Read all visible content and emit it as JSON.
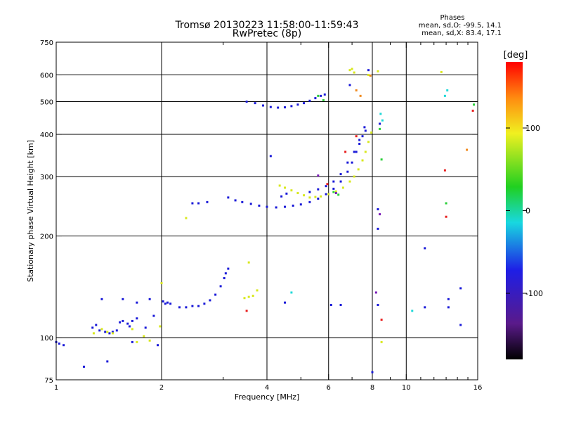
{
  "title_line1": "Tromsø 20130223 11:58:00-11:59:43",
  "title_line2": "RwPretec (8p)",
  "phases": {
    "heading": "Phases",
    "line_o": "mean, sd,O: -99.5, 14.1",
    "line_x": "mean, sd,X: 83.4, 17.1"
  },
  "colorbar": {
    "label": "[deg]",
    "ticks": [
      {
        "value": 100,
        "label": "100"
      },
      {
        "value": 0,
        "label": "0"
      },
      {
        "value": -100,
        "label": "-100"
      }
    ],
    "range": [
      -180,
      180
    ]
  },
  "chart_data": {
    "type": "scatter",
    "title": "Tromsø 20130223 11:58:00-11:59:43",
    "subtitle": "RwPretec (8p)",
    "xlabel": "Frequency [MHz]",
    "ylabel": "Stationary phase Virtual Height [km]",
    "xscale": "log",
    "yscale": "log",
    "xlim": [
      1,
      16
    ],
    "ylim": [
      75,
      750
    ],
    "grid": true,
    "xticks": [
      1,
      2,
      4,
      6,
      8,
      10,
      16
    ],
    "yticks": [
      75,
      100,
      200,
      300,
      400,
      500,
      600,
      750
    ],
    "vgrid": [
      2,
      4,
      6,
      8,
      10
    ],
    "hgrid": [
      100,
      200,
      300,
      400,
      500,
      600
    ],
    "color_scale": "phase [deg], -180 to 180",
    "series": [
      {
        "color": "#1a1ad8",
        "points": [
          [
            1.0,
            97
          ],
          [
            1.02,
            96
          ],
          [
            1.05,
            95
          ],
          [
            1.27,
            107
          ],
          [
            1.3,
            109
          ],
          [
            1.33,
            105
          ],
          [
            1.38,
            104
          ],
          [
            1.42,
            103
          ],
          [
            1.45,
            104
          ],
          [
            1.49,
            105
          ],
          [
            1.52,
            111
          ],
          [
            1.55,
            112
          ],
          [
            1.6,
            110
          ],
          [
            1.65,
            112
          ],
          [
            1.7,
            114
          ],
          [
            2.02,
            128
          ],
          [
            2.05,
            126
          ],
          [
            2.08,
            127
          ],
          [
            2.12,
            126
          ],
          [
            2.25,
            123
          ],
          [
            2.35,
            123
          ],
          [
            2.45,
            124
          ],
          [
            2.55,
            124
          ],
          [
            2.65,
            126
          ],
          [
            2.75,
            129
          ],
          [
            2.85,
            134
          ],
          [
            2.95,
            142
          ],
          [
            3.02,
            150
          ],
          [
            3.05,
            155
          ],
          [
            3.1,
            160
          ],
          [
            2.45,
            250
          ],
          [
            2.55,
            250
          ],
          [
            2.7,
            252
          ],
          [
            3.1,
            260
          ],
          [
            3.25,
            255
          ],
          [
            3.4,
            252
          ],
          [
            3.6,
            249
          ],
          [
            3.8,
            246
          ],
          [
            4.0,
            244
          ],
          [
            4.25,
            243
          ],
          [
            4.5,
            244
          ],
          [
            4.75,
            246
          ],
          [
            5.0,
            248
          ],
          [
            5.3,
            252
          ],
          [
            5.6,
            258
          ],
          [
            5.9,
            266
          ],
          [
            6.2,
            276
          ],
          [
            6.5,
            290
          ],
          [
            6.8,
            310
          ],
          [
            7.0,
            330
          ],
          [
            7.2,
            355
          ],
          [
            7.35,
            375
          ],
          [
            7.5,
            395
          ],
          [
            7.65,
            410
          ],
          [
            5.3,
            270
          ],
          [
            5.6,
            275
          ],
          [
            5.9,
            281
          ],
          [
            6.2,
            290
          ],
          [
            6.5,
            305
          ],
          [
            6.8,
            330
          ],
          [
            7.1,
            355
          ],
          [
            7.35,
            385
          ],
          [
            7.6,
            420
          ],
          [
            3.5,
            500
          ],
          [
            3.7,
            495
          ],
          [
            3.9,
            487
          ],
          [
            4.1,
            482
          ],
          [
            4.3,
            480
          ],
          [
            4.5,
            481
          ],
          [
            4.7,
            485
          ],
          [
            4.9,
            490
          ],
          [
            5.1,
            495
          ],
          [
            5.3,
            503
          ],
          [
            5.5,
            512
          ],
          [
            5.7,
            520
          ],
          [
            5.85,
            525
          ],
          [
            6.9,
            560
          ],
          [
            7.8,
            620
          ],
          [
            8.3,
            240
          ],
          [
            8.3,
            210
          ],
          [
            8.4,
            430
          ],
          [
            1.62,
            108
          ],
          [
            1.8,
            107
          ],
          [
            1.9,
            116
          ],
          [
            1.35,
            130
          ],
          [
            1.55,
            130
          ],
          [
            1.7,
            127
          ],
          [
            1.85,
            130
          ],
          [
            4.1,
            345
          ],
          [
            4.4,
            262
          ],
          [
            4.55,
            267
          ],
          [
            1.95,
            95
          ],
          [
            1.65,
            97
          ],
          [
            1.4,
            85
          ],
          [
            1.2,
            82
          ],
          [
            4.5,
            127
          ],
          [
            6.1,
            125
          ],
          [
            6.5,
            125
          ],
          [
            8.3,
            125
          ],
          [
            13.2,
            130
          ],
          [
            14.3,
            140
          ],
          [
            13.2,
            123
          ],
          [
            11.3,
            184
          ],
          [
            11.3,
            123
          ],
          [
            14.3,
            109
          ],
          [
            8.0,
            79
          ]
        ]
      },
      {
        "color": "#d8e81e",
        "points": [
          [
            1.28,
            103
          ],
          [
            1.35,
            106
          ],
          [
            1.4,
            104
          ],
          [
            1.45,
            103
          ],
          [
            1.65,
            106
          ],
          [
            1.7,
            97
          ],
          [
            1.78,
            101
          ],
          [
            1.85,
            98
          ],
          [
            1.98,
            108
          ],
          [
            2.0,
            145
          ],
          [
            4.35,
            282
          ],
          [
            4.5,
            278
          ],
          [
            4.7,
            273
          ],
          [
            4.9,
            268
          ],
          [
            5.1,
            264
          ],
          [
            5.3,
            260
          ],
          [
            5.5,
            261
          ],
          [
            5.7,
            262
          ],
          [
            6.0,
            266
          ],
          [
            6.3,
            271
          ],
          [
            6.6,
            278
          ],
          [
            6.9,
            290
          ],
          [
            7.1,
            300
          ],
          [
            7.3,
            315
          ],
          [
            7.5,
            335
          ],
          [
            7.65,
            355
          ],
          [
            7.8,
            380
          ],
          [
            7.95,
            405
          ],
          [
            3.45,
            131
          ],
          [
            3.55,
            132
          ],
          [
            3.65,
            133
          ],
          [
            3.75,
            138
          ],
          [
            6.9,
            620
          ],
          [
            7.0,
            625
          ],
          [
            7.8,
            600
          ],
          [
            7.1,
            610
          ],
          [
            8.5,
            97
          ],
          [
            2.35,
            226
          ],
          [
            3.55,
            167
          ],
          [
            12.6,
            612
          ],
          [
            8.3,
            615
          ]
        ]
      },
      {
        "color": "#2bd03a",
        "points": [
          [
            5.6,
            520
          ],
          [
            5.8,
            505
          ],
          [
            6.2,
            270
          ],
          [
            6.4,
            265
          ],
          [
            13.0,
            250
          ],
          [
            15.6,
            490
          ],
          [
            8.4,
            415
          ],
          [
            8.5,
            337
          ]
        ]
      },
      {
        "color": "#20d8d8",
        "points": [
          [
            8.45,
            460
          ],
          [
            8.55,
            440
          ],
          [
            12.9,
            520
          ],
          [
            13.1,
            540
          ],
          [
            10.4,
            120
          ],
          [
            4.7,
            136
          ]
        ]
      },
      {
        "color": "#e82020",
        "points": [
          [
            5.95,
            285
          ],
          [
            6.7,
            355
          ],
          [
            12.9,
            313
          ],
          [
            13.0,
            228
          ],
          [
            15.5,
            470
          ],
          [
            8.5,
            113
          ],
          [
            3.5,
            120
          ],
          [
            7.2,
            395
          ]
        ]
      },
      {
        "color": "#7a1ab8",
        "points": [
          [
            6.3,
            268
          ],
          [
            8.2,
            136
          ],
          [
            8.4,
            232
          ],
          [
            5.6,
            302
          ]
        ]
      },
      {
        "color": "#f08a1e",
        "points": [
          [
            7.2,
            540
          ],
          [
            7.4,
            520
          ],
          [
            14.9,
            360
          ],
          [
            7.9,
            597
          ]
        ]
      }
    ]
  }
}
